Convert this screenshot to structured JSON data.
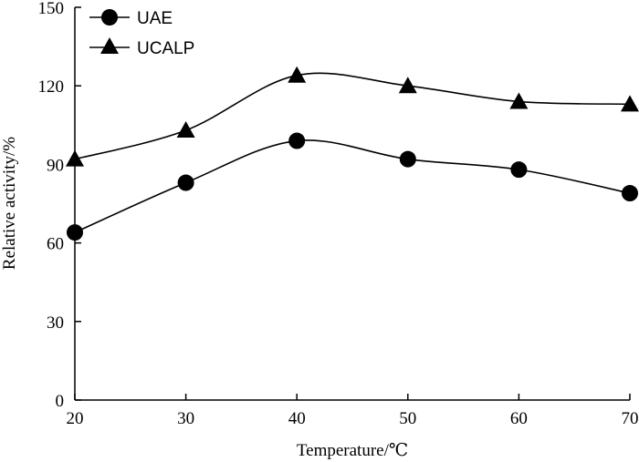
{
  "chart_data": {
    "type": "line",
    "title": "",
    "xlabel": "Temperature/℃",
    "ylabel": "Relative activity/%",
    "x": [
      20,
      30,
      40,
      50,
      60,
      70
    ],
    "xlim": [
      20,
      70
    ],
    "ylim": [
      0,
      150
    ],
    "xticks": [
      "20",
      "30",
      "40",
      "50",
      "60",
      "70"
    ],
    "yticks": [
      "0",
      "30",
      "60",
      "90",
      "120",
      "150"
    ],
    "grid": false,
    "legend_position": "top-left",
    "series": [
      {
        "name": "UAE",
        "marker": "circle",
        "values": [
          64,
          83,
          99,
          92,
          88,
          79
        ]
      },
      {
        "name": "UCALP",
        "marker": "triangle",
        "values": [
          92,
          103,
          124,
          120,
          114,
          113
        ]
      }
    ]
  }
}
